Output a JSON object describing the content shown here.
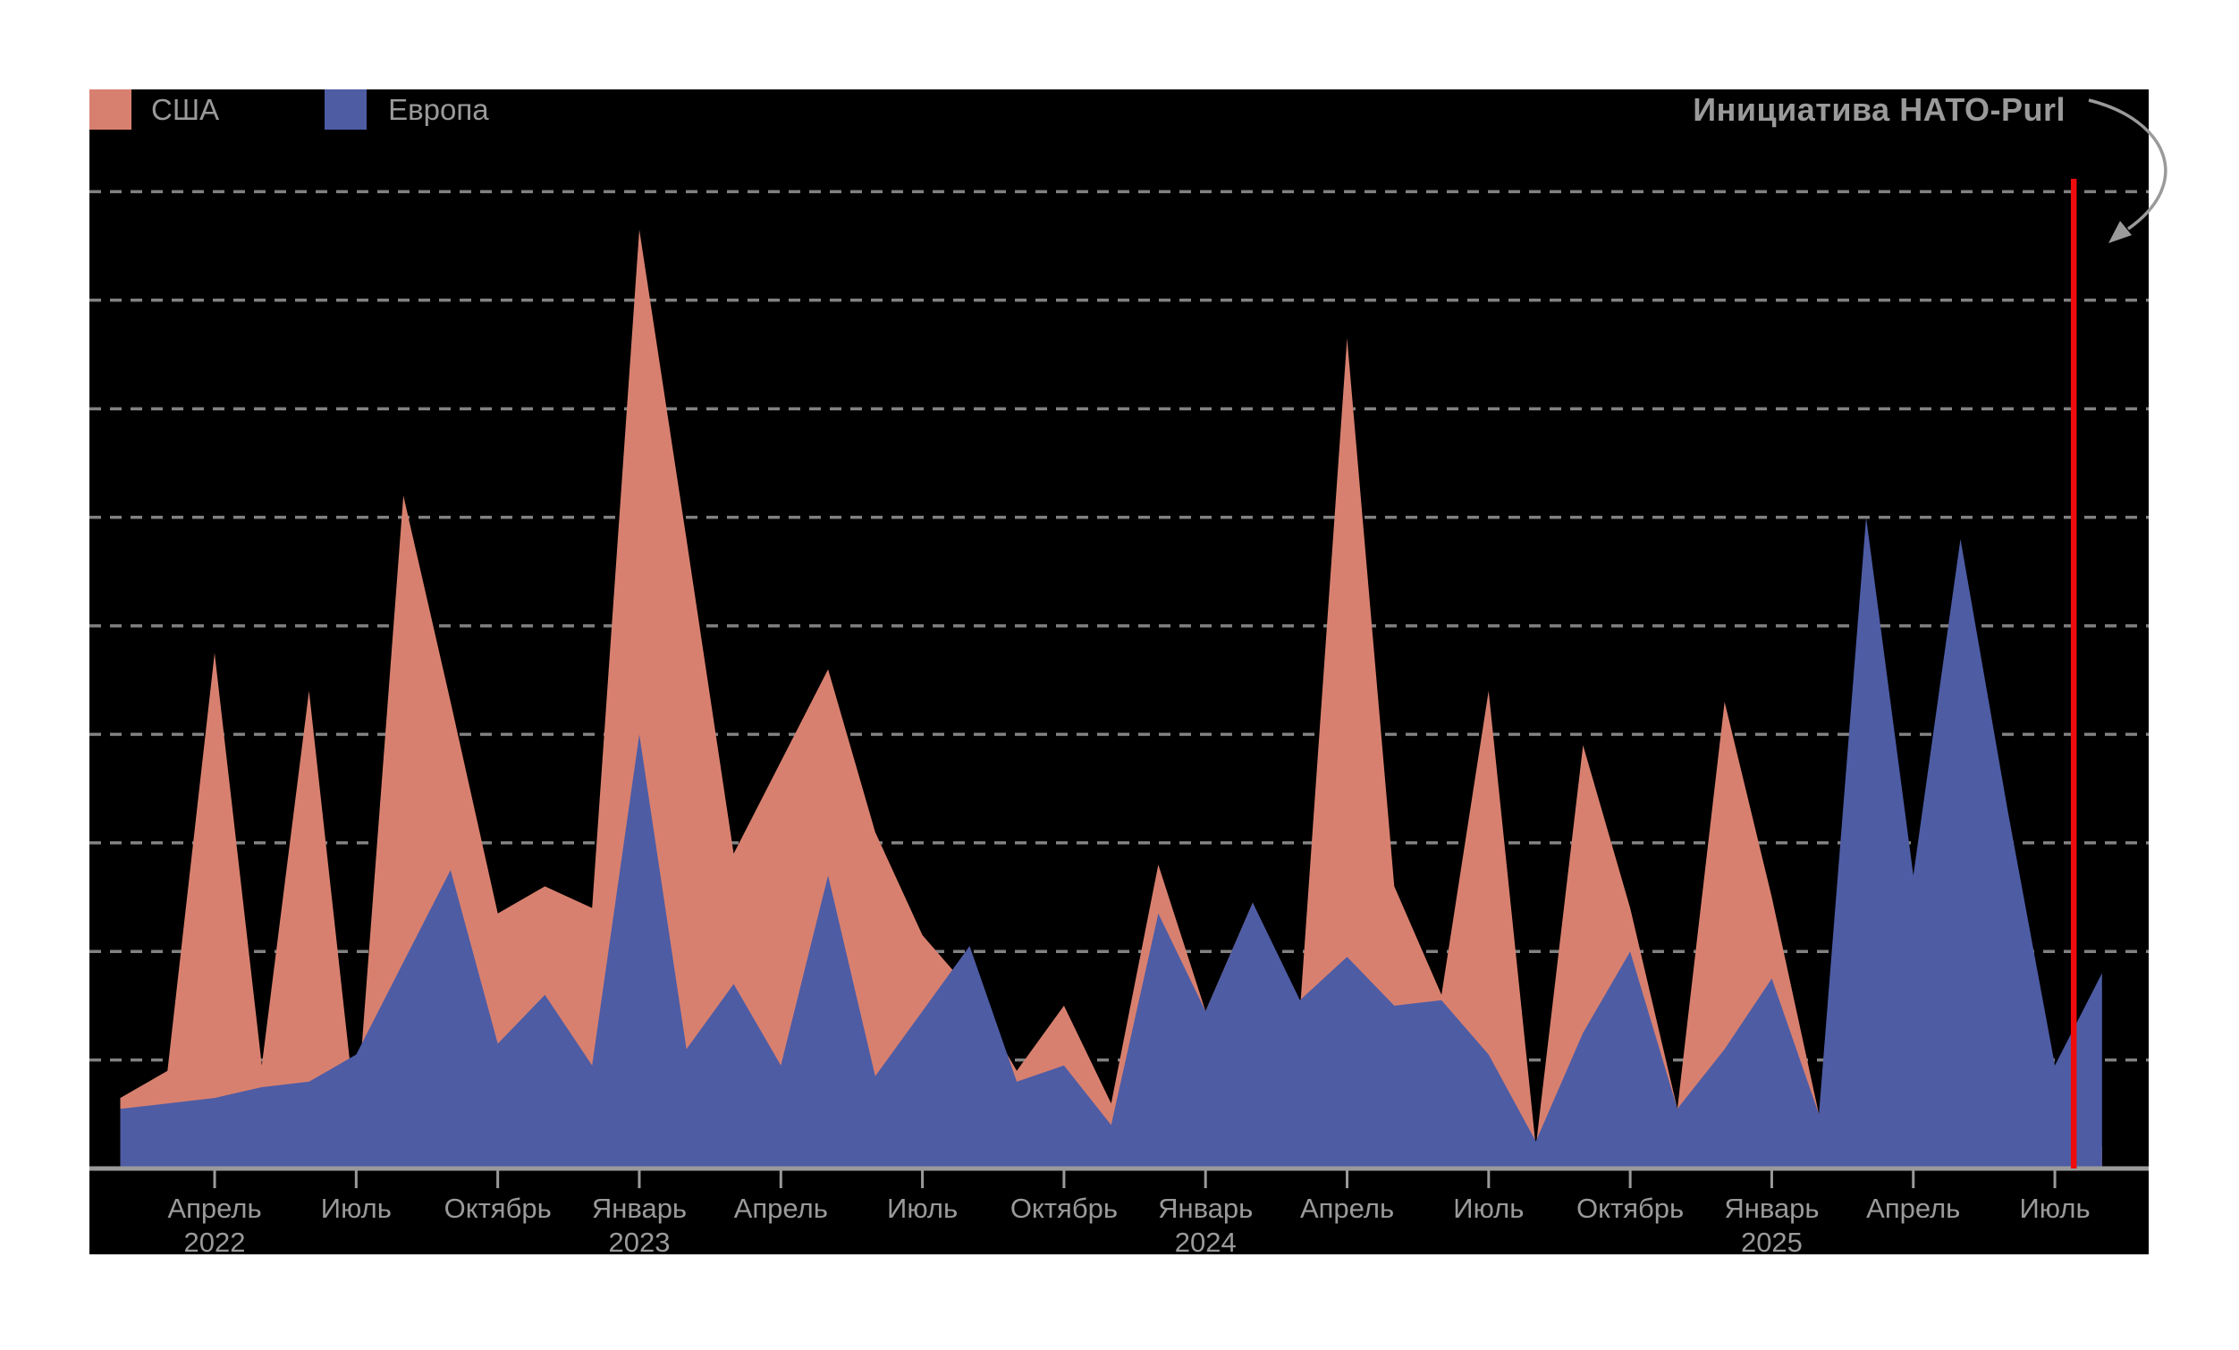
{
  "page": {
    "background": "#ffffff",
    "panel_background": "#000000"
  },
  "legend": {
    "items": [
      {
        "label": "США",
        "color": "#d8806f"
      },
      {
        "label": "Европа",
        "color": "#4e5ca4"
      }
    ],
    "text_color": "#9a9a9a"
  },
  "chart_data": {
    "type": "area",
    "mode": "overlapping",
    "title": "",
    "xlabel": "",
    "ylabel": "",
    "y_axis_labels_visible": false,
    "ylim": [
      0,
      10
    ],
    "gridlines": [
      1,
      2,
      3,
      4,
      5,
      6,
      7,
      8,
      9
    ],
    "grid_style": "dashed",
    "grid_color": "#8f8f8f",
    "axis_color": "#9a9a9a",
    "tick_label_color": "#9a9a9a",
    "x": [
      "2022-02",
      "2022-03",
      "2022-04",
      "2022-05",
      "2022-06",
      "2022-07",
      "2022-08",
      "2022-09",
      "2022-10",
      "2022-11",
      "2022-12",
      "2023-01",
      "2023-02",
      "2023-03",
      "2023-04",
      "2023-05",
      "2023-06",
      "2023-07",
      "2023-08",
      "2023-09",
      "2023-10",
      "2023-11",
      "2023-12",
      "2024-01",
      "2024-02",
      "2024-03",
      "2024-04",
      "2024-05",
      "2024-06",
      "2024-07",
      "2024-08",
      "2024-09",
      "2024-10",
      "2024-11",
      "2024-12",
      "2025-01",
      "2025-02",
      "2025-03",
      "2025-04",
      "2025-05",
      "2025-06",
      "2025-07",
      "2025-08"
    ],
    "series": [
      {
        "name": "США",
        "color": "#d8806f",
        "values": [
          0.65,
          0.9,
          4.75,
          0.95,
          4.4,
          0.45,
          6.2,
          4.3,
          2.35,
          2.6,
          2.4,
          8.65,
          5.8,
          2.9,
          3.75,
          4.6,
          3.1,
          2.15,
          1.65,
          0.9,
          1.5,
          0.6,
          2.8,
          1.45,
          2.45,
          1.45,
          7.65,
          2.6,
          1.6,
          4.4,
          0.2,
          3.9,
          2.4,
          0.55,
          4.3,
          2.5,
          0.5,
          0.2,
          0.2,
          0.15,
          0.2,
          0.3,
          0.2
        ]
      },
      {
        "name": "Европа",
        "color": "#4e5ca4",
        "values": [
          0.55,
          0.6,
          0.65,
          0.75,
          0.8,
          1.05,
          1.9,
          2.75,
          1.15,
          1.6,
          0.95,
          4.0,
          1.1,
          1.7,
          0.95,
          2.7,
          0.85,
          1.45,
          2.05,
          0.8,
          0.95,
          0.4,
          2.35,
          1.45,
          2.45,
          1.55,
          1.95,
          1.5,
          1.55,
          1.05,
          0.25,
          1.25,
          2.0,
          0.55,
          1.1,
          1.75,
          0.5,
          6.0,
          2.7,
          5.8,
          3.3,
          0.95,
          1.8
        ]
      }
    ],
    "x_ticks": [
      {
        "index": 2,
        "label": "Апрель",
        "year": "2022"
      },
      {
        "index": 5,
        "label": "Июль"
      },
      {
        "index": 8,
        "label": "Октябрь"
      },
      {
        "index": 11,
        "label": "Январь",
        "year": "2023"
      },
      {
        "index": 14,
        "label": "Апрель"
      },
      {
        "index": 17,
        "label": "Июль"
      },
      {
        "index": 20,
        "label": "Октябрь"
      },
      {
        "index": 23,
        "label": "Январь",
        "year": "2024"
      },
      {
        "index": 26,
        "label": "Апрель"
      },
      {
        "index": 29,
        "label": "Июль"
      },
      {
        "index": 32,
        "label": "Октябрь"
      },
      {
        "index": 35,
        "label": "Январь",
        "year": "2025"
      },
      {
        "index": 38,
        "label": "Апрель"
      },
      {
        "index": 41,
        "label": "Июль"
      }
    ],
    "event_line": {
      "label": "Инициатива НАТО-Purl",
      "month_index": 41.4,
      "color": "#ee0c0c",
      "arrow_color": "#9a9a9a"
    },
    "legend_position": "top-left"
  }
}
